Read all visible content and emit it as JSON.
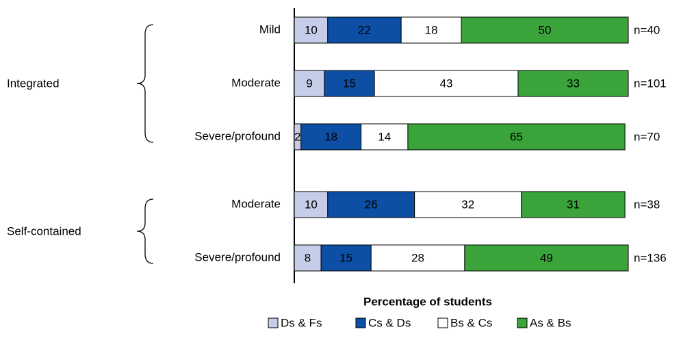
{
  "chart_data": {
    "type": "stacked-bar-horizontal",
    "groups": [
      {
        "name": "Integrated",
        "categories": [
          "Mild",
          "Moderate",
          "Severe/profound"
        ],
        "n_labels": [
          "n=40",
          "n=101",
          "n=70"
        ]
      },
      {
        "name": "Self-contained",
        "categories": [
          "Moderate",
          "Severe/profound"
        ],
        "n_labels": [
          "n=38",
          "n=136"
        ]
      }
    ],
    "series": [
      {
        "name": "Ds & Fs",
        "color": "#c5cde8",
        "values": [
          10,
          9,
          2,
          10,
          8
        ]
      },
      {
        "name": "Cs & Ds",
        "color": "#0d4fa5",
        "values": [
          22,
          15,
          18,
          26,
          15
        ]
      },
      {
        "name": "Bs & Cs",
        "color": "#ffffff",
        "values": [
          18,
          43,
          14,
          32,
          28
        ]
      },
      {
        "name": "As & Bs",
        "color": "#3aa33a",
        "values": [
          50,
          33,
          65,
          31,
          49
        ]
      }
    ],
    "x_label": "Percentage of students"
  }
}
